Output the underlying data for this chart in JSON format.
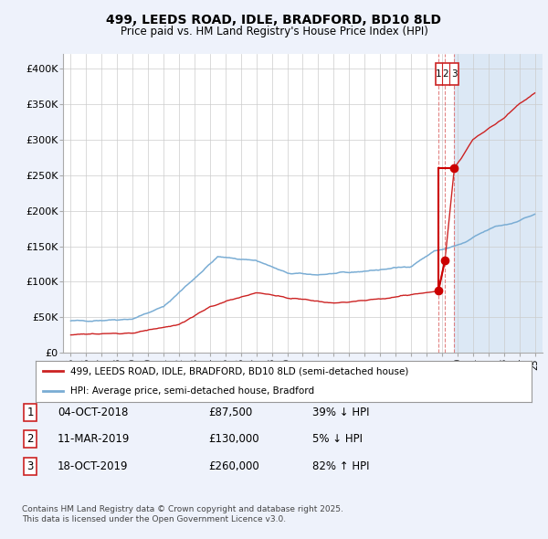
{
  "title": "499, LEEDS ROAD, IDLE, BRADFORD, BD10 8LD",
  "subtitle": "Price paid vs. HM Land Registry's House Price Index (HPI)",
  "background_color": "#eef2fb",
  "plot_bg_color": "#ffffff",
  "grid_color": "#cccccc",
  "hpi_line_color": "#7aadd4",
  "price_line_color": "#cc2222",
  "sale_marker_color": "#cc0000",
  "dashed_line_color": "#dd6666",
  "highlight_bg": "#dce8f5",
  "ylim": [
    0,
    420000
  ],
  "yticks": [
    0,
    50000,
    100000,
    150000,
    200000,
    250000,
    300000,
    350000,
    400000
  ],
  "ytick_labels": [
    "£0",
    "£50K",
    "£100K",
    "£150K",
    "£200K",
    "£250K",
    "£300K",
    "£350K",
    "£400K"
  ],
  "xlim_start": 1994.5,
  "xlim_end": 2025.5,
  "sale_dates": [
    2018.77,
    2019.19,
    2019.8
  ],
  "sale_prices": [
    87500,
    130000,
    260000
  ],
  "sale_labels": [
    "1",
    "2",
    "3"
  ],
  "highlight_start": 2019.8,
  "legend_entries": [
    "499, LEEDS ROAD, IDLE, BRADFORD, BD10 8LD (semi-detached house)",
    "HPI: Average price, semi-detached house, Bradford"
  ],
  "table_rows": [
    [
      "1",
      "04-OCT-2018",
      "£87,500",
      "39% ↓ HPI"
    ],
    [
      "2",
      "11-MAR-2019",
      "£130,000",
      "5% ↓ HPI"
    ],
    [
      "3",
      "18-OCT-2019",
      "£260,000",
      "82% ↑ HPI"
    ]
  ],
  "footnote": "Contains HM Land Registry data © Crown copyright and database right 2025.\nThis data is licensed under the Open Government Licence v3.0.",
  "hpi_start_year": 1995,
  "hpi_end_year": 2025
}
